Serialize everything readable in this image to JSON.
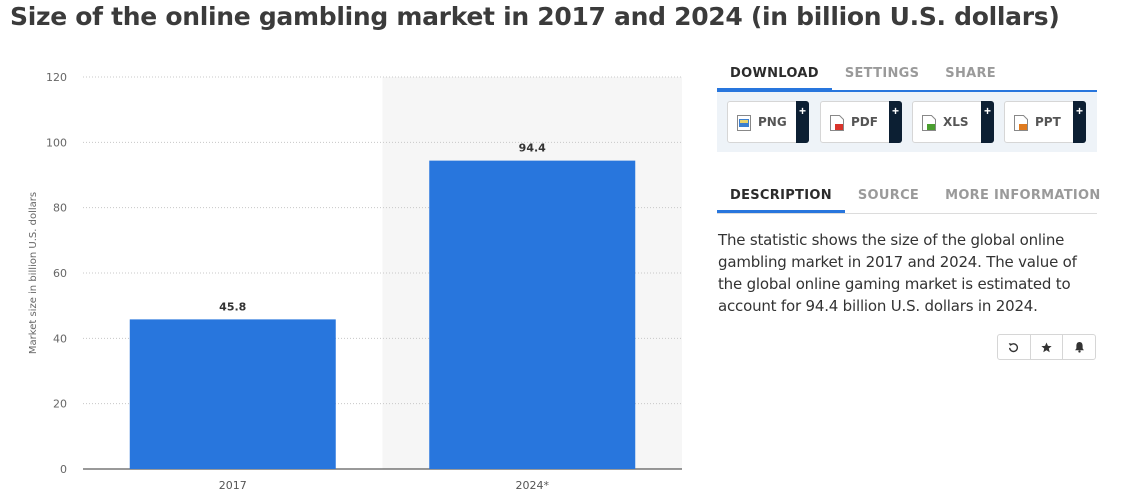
{
  "page": {
    "title": "Size of the online gambling market in 2017 and 2024 (in billion U.S. dollars)"
  },
  "chart_data": {
    "type": "bar",
    "categories": [
      "2017",
      "2024*"
    ],
    "values": [
      45.8,
      94.4
    ],
    "value_labels": [
      "45.8",
      "94.4"
    ],
    "title": "",
    "xlabel": "",
    "ylabel": "Market size in billion U.S. dollars",
    "ylim": [
      0,
      120
    ],
    "yticks": [
      0,
      20,
      40,
      60,
      80,
      100,
      120
    ],
    "grid": true,
    "bar_color": "#2876dd",
    "highlight_category": "2024*",
    "highlight_color": "#f6f6f6"
  },
  "download_tabs": [
    {
      "label": "DOWNLOAD",
      "active": true
    },
    {
      "label": "SETTINGS",
      "active": false
    },
    {
      "label": "SHARE",
      "active": false
    }
  ],
  "download_buttons": [
    {
      "label": "PNG",
      "icon": "png-file-icon",
      "icon_color": "#3c7fcf",
      "plus": "+"
    },
    {
      "label": "PDF",
      "icon": "pdf-file-icon",
      "icon_color": "#d9342b",
      "plus": "+"
    },
    {
      "label": "XLS",
      "icon": "xls-file-icon",
      "icon_color": "#4a9e2f",
      "plus": "+"
    },
    {
      "label": "PPT",
      "icon": "ppt-file-icon",
      "icon_color": "#e07b1f",
      "plus": "+"
    }
  ],
  "info_tabs": [
    {
      "label": "DESCRIPTION",
      "active": true
    },
    {
      "label": "SOURCE",
      "active": false
    },
    {
      "label": "MORE INFORMATION",
      "active": false
    }
  ],
  "description": "The statistic shows the size of the global online gambling market in 2017 and 2024. The value of the global online gaming market is estimated to account for 94.4 billion U.S. dollars in 2024.",
  "actions": [
    {
      "name": "history-icon",
      "glyph": "⟲"
    },
    {
      "name": "star-icon",
      "glyph": "★"
    },
    {
      "name": "bell-icon",
      "glyph": "bell"
    }
  ],
  "colors": {
    "accent": "#2876dd",
    "download_bg": "#eef3f8",
    "plus_bg": "#0c1f33"
  }
}
